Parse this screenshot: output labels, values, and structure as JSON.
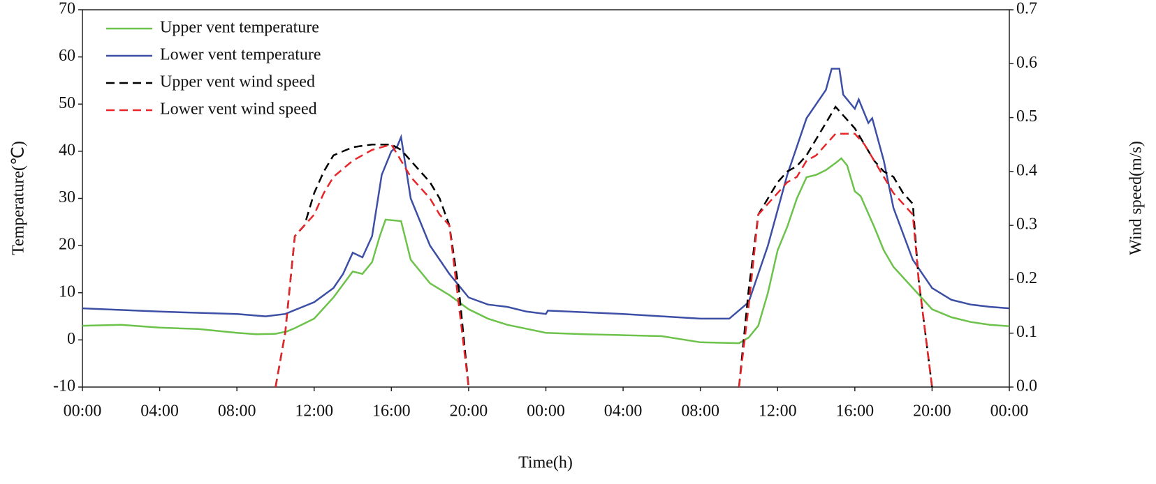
{
  "chart_data": {
    "type": "line",
    "xlabel": "Time(h)",
    "ylabel": "Temperature(℃)",
    "y2label": "Wind speed(m/s)",
    "xlim": [
      0,
      48
    ],
    "xticks": [
      {
        "value": 0,
        "label": "00:00"
      },
      {
        "value": 4,
        "label": "04:00"
      },
      {
        "value": 8,
        "label": "08:00"
      },
      {
        "value": 12,
        "label": "12:00"
      },
      {
        "value": 16,
        "label": "16:00"
      },
      {
        "value": 20,
        "label": "20:00"
      },
      {
        "value": 24,
        "label": "00:00"
      },
      {
        "value": 28,
        "label": "04:00"
      },
      {
        "value": 32,
        "label": "08:00"
      },
      {
        "value": 36,
        "label": "12:00"
      },
      {
        "value": 40,
        "label": "16:00"
      },
      {
        "value": 44,
        "label": "20:00"
      },
      {
        "value": 48,
        "label": "00:00"
      }
    ],
    "ylim": [
      -10,
      70
    ],
    "yticks": [
      -10,
      0,
      10,
      20,
      30,
      40,
      50,
      60,
      70
    ],
    "y2lim": [
      0,
      0.7
    ],
    "y2ticks": [
      {
        "value": 0,
        "label": "0.0"
      },
      0.1,
      0.2,
      0.3,
      0.4,
      0.5,
      0.6,
      0.7
    ],
    "legend": "upper left",
    "series": [
      {
        "name": "Upper vent temperature",
        "color": "#6cc24a",
        "dash": "solid",
        "x": [
          0,
          2,
          4,
          6,
          8,
          9,
          10,
          10.6,
          11,
          12,
          13,
          14,
          14.5,
          15,
          15.4,
          15.7,
          16.5,
          17,
          18,
          19,
          20,
          21,
          22,
          24,
          26,
          28,
          30,
          32,
          34,
          34.5,
          35,
          35.5,
          36,
          36.5,
          37,
          37.5,
          38,
          38.5,
          39,
          39.3,
          39.6,
          40,
          40.3,
          41,
          41.5,
          42,
          43,
          44,
          45,
          46,
          47,
          48
        ],
        "values": [
          3,
          3.2,
          2.6,
          2.3,
          1.5,
          1.2,
          1.3,
          1.8,
          2.5,
          4.5,
          9,
          14.5,
          14,
          16.5,
          22,
          25.5,
          25.2,
          17,
          12,
          9.5,
          6.5,
          4.5,
          3.2,
          1.5,
          1.2,
          1,
          0.8,
          -0.5,
          -0.7,
          0.5,
          3,
          10,
          19,
          24,
          30,
          34.5,
          35,
          36,
          37.5,
          38.5,
          37,
          31.5,
          30.5,
          24,
          19,
          15.5,
          11,
          6.5,
          4.8,
          3.8,
          3.2,
          2.9
        ]
      },
      {
        "name": "Lower vent temperature",
        "color": "#3d4fa5",
        "dash": "solid",
        "x": [
          0,
          4,
          8,
          9.5,
          10.5,
          12,
          13,
          13.5,
          14,
          14.5,
          15,
          15.5,
          16,
          16.3,
          16.5,
          17,
          18,
          19,
          20,
          21,
          22,
          23,
          24,
          24.1,
          28,
          32,
          33.5,
          34.5,
          35.5,
          36.5,
          37.5,
          38,
          38.5,
          38.8,
          39.2,
          39.4,
          40,
          40.2,
          40.7,
          40.9,
          41.5,
          42,
          43,
          44,
          45,
          46,
          47,
          48
        ],
        "values": [
          6.7,
          6,
          5.5,
          5,
          5.5,
          8,
          11,
          14,
          18.5,
          17.5,
          22,
          35,
          40,
          41,
          43,
          30,
          20,
          14,
          9,
          7.5,
          7,
          6,
          5.5,
          6.2,
          5.5,
          4.5,
          4.5,
          8,
          20,
          35,
          47,
          50,
          53,
          57.5,
          57.5,
          52,
          49,
          51,
          46,
          47,
          38,
          28,
          17,
          11,
          8.5,
          7.5,
          7,
          6.7
        ]
      },
      {
        "name": "Upper vent wind speed",
        "color": "#000000",
        "dash": "dashed",
        "axis": "y2",
        "x": [
          10,
          10.5,
          11,
          11.5,
          12,
          12.5,
          13,
          14,
          15,
          16,
          16.5,
          17,
          18,
          18.5,
          19,
          19.5,
          20,
          null,
          34,
          34.5,
          35,
          35.5,
          36,
          36.5,
          37,
          37.5,
          38,
          38.5,
          39,
          39.5,
          40,
          40.5,
          41,
          41.5,
          42,
          42.5,
          43,
          43.3,
          44
        ],
        "values": [
          0,
          0.1,
          0.28,
          0.3,
          0.36,
          0.4,
          0.43,
          0.445,
          0.45,
          0.45,
          0.44,
          0.42,
          0.38,
          0.35,
          0.3,
          0.18,
          0,
          null,
          0,
          0.18,
          0.32,
          0.35,
          0.38,
          0.4,
          0.41,
          0.43,
          0.46,
          0.49,
          0.52,
          0.5,
          0.48,
          0.45,
          0.42,
          0.4,
          0.39,
          0.36,
          0.34,
          0.2,
          0
        ]
      },
      {
        "name": "Lower vent wind speed",
        "color": "#e8262a",
        "dash": "dashed",
        "axis": "y2",
        "x": [
          10,
          10.5,
          11,
          11.5,
          12,
          12.5,
          13,
          14,
          15,
          16,
          16.5,
          17,
          18,
          18.5,
          19,
          19.5,
          20,
          null,
          34,
          34.5,
          35,
          35.5,
          36,
          36.5,
          37,
          37.5,
          38,
          38.5,
          39,
          40,
          40.5,
          41,
          41.5,
          42,
          42.5,
          43,
          43.3,
          44
        ],
        "values": [
          0,
          0.1,
          0.28,
          0.3,
          0.32,
          0.36,
          0.39,
          0.42,
          0.44,
          0.45,
          0.42,
          0.39,
          0.35,
          0.32,
          0.3,
          0.15,
          0,
          null,
          0,
          0.15,
          0.32,
          0.34,
          0.36,
          0.38,
          0.39,
          0.42,
          0.43,
          0.45,
          0.47,
          0.47,
          0.45,
          0.42,
          0.39,
          0.36,
          0.34,
          0.32,
          0.2,
          0
        ]
      }
    ]
  }
}
